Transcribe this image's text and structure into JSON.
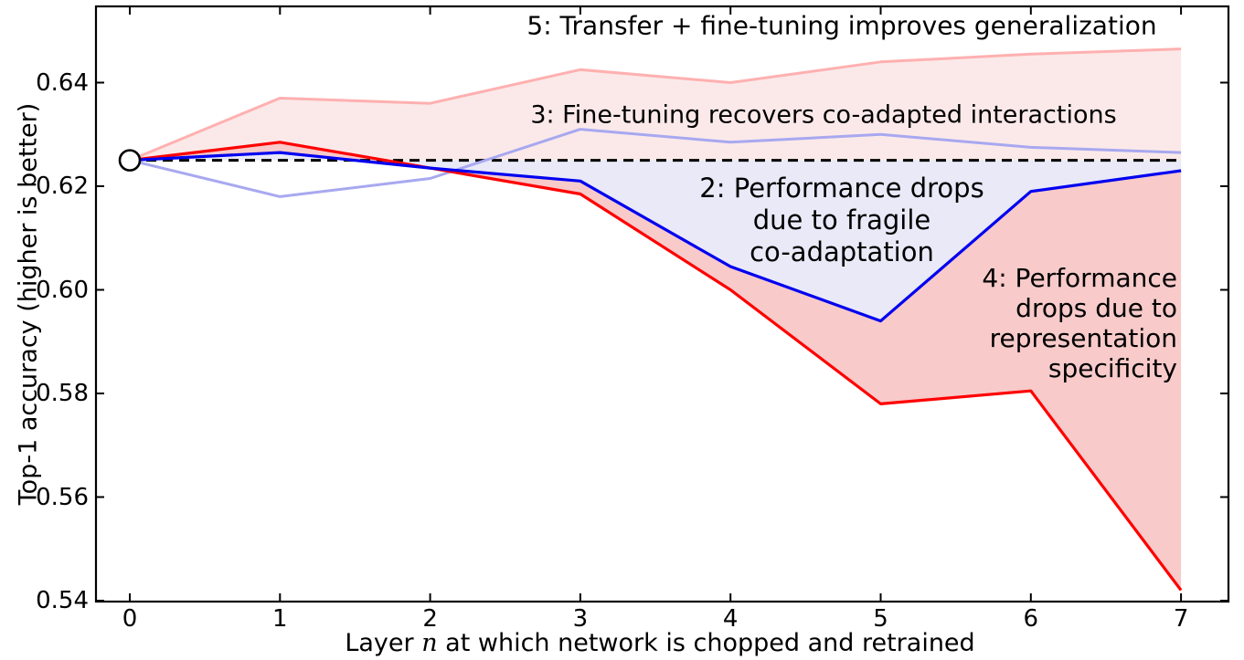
{
  "chart_data": {
    "type": "line",
    "title": "",
    "xlabel": "Layer n at which network is chopped and retrained",
    "ylabel": "Top-1 accuracy (higher is better)",
    "x": [
      0,
      1,
      2,
      3,
      4,
      5,
      6,
      7
    ],
    "xlim": [
      -0.23,
      7.31
    ],
    "ylim": [
      0.54,
      0.655
    ],
    "grid": false,
    "legend_position": "none (inline text annotations)",
    "baseline": {
      "value": 0.625,
      "style": "dashed",
      "color": "#000000"
    },
    "start_marker": {
      "x": 0,
      "y": 0.625,
      "shape": "open-circle",
      "fill": "#ffffff",
      "edge": "#000000"
    },
    "series": [
      {
        "name": "2: BnB — performance drops due to fragile co-adaptation",
        "color": "#0000f0",
        "width": 3.2,
        "values": [
          0.625,
          0.6265,
          0.6235,
          0.621,
          0.6045,
          0.594,
          0.619,
          0.623
        ]
      },
      {
        "name": "3: BnB+ — fine-tuning recovers co-adapted interactions",
        "color": "#a8a8f0",
        "width": 3,
        "values": [
          0.625,
          0.618,
          0.6215,
          0.631,
          0.6285,
          0.63,
          0.6275,
          0.6265
        ]
      },
      {
        "name": "4: AnB — performance drops due to representation specificity",
        "color": "#ff0000",
        "width": 3.2,
        "values": [
          0.625,
          0.6285,
          0.6235,
          0.6185,
          0.6,
          0.578,
          0.5805,
          0.542
        ]
      },
      {
        "name": "5: AnB+ — transfer + fine-tuning improves generalization",
        "color": "#ffb0b0",
        "width": 3,
        "values": [
          0.625,
          0.637,
          0.636,
          0.6425,
          0.64,
          0.644,
          0.6455,
          0.6465
        ]
      }
    ],
    "fills": [
      {
        "name": "light-pink-region",
        "between": "AnB+ and max(AnB, baseline)",
        "color": "#fbe9e9"
      },
      {
        "name": "lavender-region",
        "between": "baseline and BnB",
        "color": "#e9e9f8"
      },
      {
        "name": "deep-pink-region",
        "between": "BnB and AnB",
        "color": "#f8caca"
      }
    ]
  },
  "axis": {
    "xlabel_prefix": "Layer ",
    "xlabel_var": "n",
    "xlabel_suffix": " at which network is chopped and retrained",
    "ylabel": "Top-1 accuracy (higher is better)",
    "x_tick_labels": [
      "0",
      "1",
      "2",
      "3",
      "4",
      "5",
      "6",
      "7"
    ],
    "y_tick_labels": [
      "0.54",
      "0.56",
      "0.58",
      "0.60",
      "0.62",
      "0.64"
    ]
  },
  "annotations": {
    "region5": {
      "text": "5: Transfer + fine-tuning improves generalization"
    },
    "region3": {
      "text": "3: Fine-tuning recovers co-adapted interactions"
    },
    "region2": {
      "lines": [
        "2: Performance drops",
        "due to fragile",
        "co-adaptation"
      ]
    },
    "region4": {
      "lines": [
        "4: Performance",
        "drops due to",
        "representation",
        "specificity"
      ]
    }
  },
  "colors": {
    "red_line": "#ff0000",
    "blue_line": "#0000f0",
    "light_blue_line": "#a8a8f0",
    "pink_line": "#ffb0b0",
    "fill_light_pink": "#fbe9e9",
    "fill_lavender": "#e9e9f8",
    "fill_deep_pink": "#f8caca",
    "frame": "#000000"
  }
}
